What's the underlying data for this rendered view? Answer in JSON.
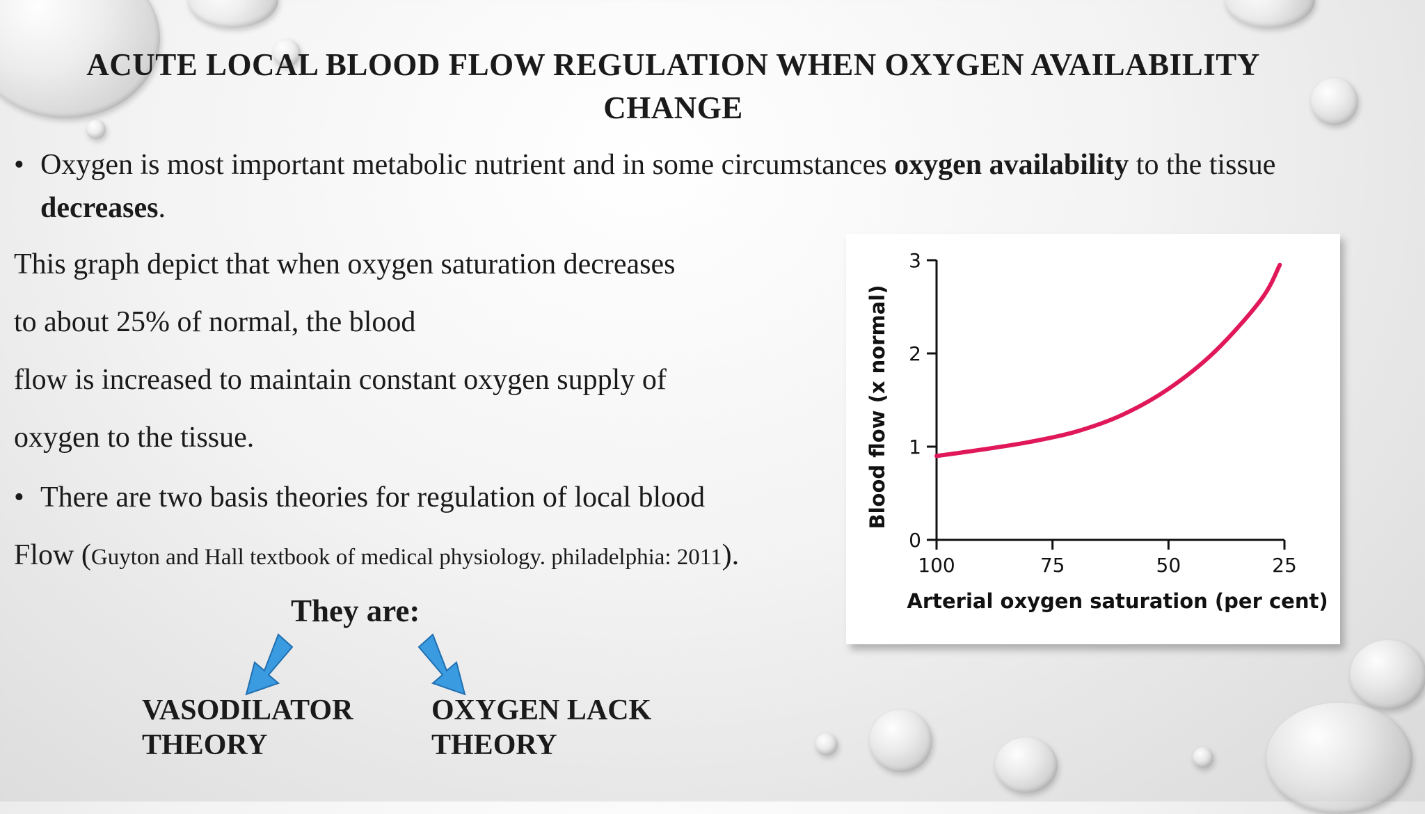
{
  "slide": {
    "title": "ACUTE LOCAL BLOOD FLOW REGULATION WHEN OXYGEN AVAILABILITY CHANGE",
    "bullet1": {
      "pre": "Oxygen is most important metabolic nutrient and in some circumstances ",
      "bold1": "oxygen availability",
      "mid": " to the tissue ",
      "bold2": "decreases",
      "post": "."
    },
    "para_lines": [
      "This graph depict that when oxygen saturation decreases",
      "to about 25% of normal, the blood",
      "flow is increased to maintain constant oxygen supply of",
      "oxygen to the tissue."
    ],
    "bullet2_line1": "There are two basis theories for regulation of local blood",
    "bullet2_line2_pre": "Flow (",
    "bullet2_citation": "Guyton and Hall textbook of medical physiology. philadelphia: 2011",
    "bullet2_line2_post": ").",
    "they_are": "They are:",
    "theory_left": [
      "VASODILATOR",
      "THEORY"
    ],
    "theory_right": [
      "OXYGEN LACK",
      "THEORY"
    ]
  },
  "colors": {
    "curve": "#e0185a",
    "arrow": "#3b9be0",
    "arrow_stroke": "#1f6fb0"
  },
  "chart_data": {
    "type": "line",
    "xlabel": "Arterial oxygen saturation (per cent)",
    "ylabel": "Blood flow (x normal)",
    "x_reversed": true,
    "xlim": [
      100,
      25
    ],
    "ylim": [
      0,
      3
    ],
    "x_ticks": [
      "100",
      "75",
      "50",
      "25"
    ],
    "y_ticks": [
      "0",
      "1",
      "2",
      "3"
    ],
    "series": [
      {
        "x": [
          100,
          90,
          80,
          70,
          60,
          50,
          40,
          30,
          26
        ],
        "y": [
          0.9,
          0.97,
          1.05,
          1.16,
          1.34,
          1.62,
          2.02,
          2.58,
          2.95
        ]
      }
    ]
  }
}
